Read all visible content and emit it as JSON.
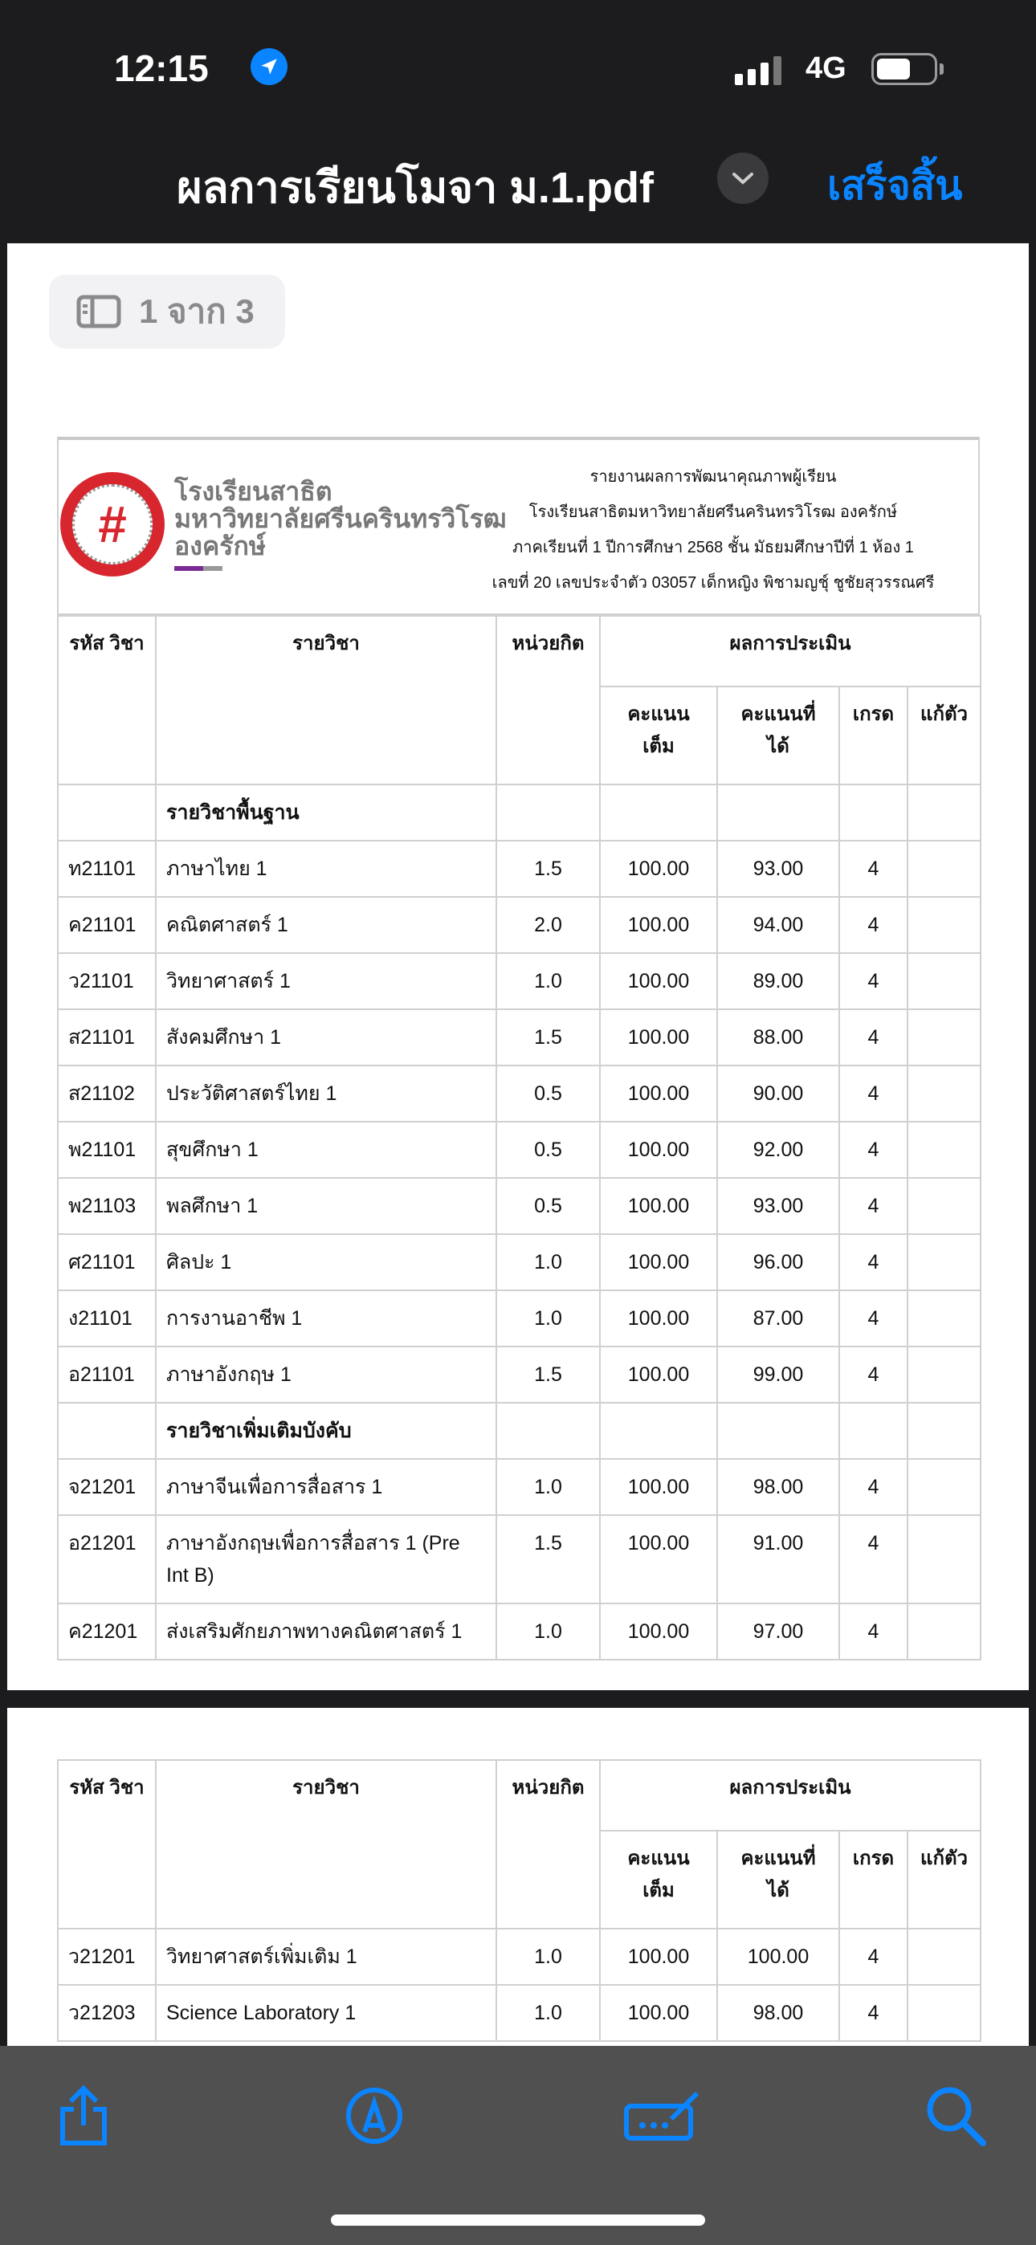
{
  "status_bar": {
    "time": "12:15",
    "network": "4G",
    "battery_percent": 60
  },
  "nav": {
    "title": "ผลการเรียนโมจา ม.1.pdf",
    "done_label": "เสร็จสิ้น"
  },
  "page_indicator": "1 จาก 3",
  "report_header": {
    "school_logo_text": [
      "โรงเรียนสาธิต",
      "มหาวิทยาลัยศรีนครินทรวิโรฒ",
      "องครักษ์"
    ],
    "lines": [
      "รายงานผลการพัฒนาคุณภาพผู้เรียน",
      "โรงเรียนสาธิตมหาวิทยาลัยศรีนครินทรวิโรฒ องครักษ์",
      "ภาคเรียนที่ 1 ปีการศึกษา 2568 ชั้น มัธยมศึกษาปีที่ 1 ห้อง 1",
      "เลขที่ 20 เลขประจำตัว 03057 เด็กหญิง พิชามญชุ์ ชูชัยสุวรรณศรี"
    ]
  },
  "table_headers": {
    "code": "รหัส วิชา",
    "subject": "รายวิชา",
    "credit": "หน่วยกิต",
    "evaluation": "ผลการประเมิน",
    "full": "คะแนน เต็ม",
    "got": "คะแนนที่ ได้",
    "grade": "เกรด",
    "fix": "แก้ตัว"
  },
  "page1_rows": [
    {
      "section": "รายวิชาพื้นฐาน"
    },
    {
      "code": "ท21101",
      "subject": "ภาษาไทย 1",
      "credit": "1.5",
      "full": "100.00",
      "got": "93.00",
      "grade": "4"
    },
    {
      "code": "ค21101",
      "subject": "คณิตศาสตร์ 1",
      "credit": "2.0",
      "full": "100.00",
      "got": "94.00",
      "grade": "4"
    },
    {
      "code": "ว21101",
      "subject": "วิทยาศาสตร์ 1",
      "credit": "1.0",
      "full": "100.00",
      "got": "89.00",
      "grade": "4"
    },
    {
      "code": "ส21101",
      "subject": "สังคมศึกษา 1",
      "credit": "1.5",
      "full": "100.00",
      "got": "88.00",
      "grade": "4"
    },
    {
      "code": "ส21102",
      "subject": "ประวัติศาสตร์ไทย 1",
      "credit": "0.5",
      "full": "100.00",
      "got": "90.00",
      "grade": "4"
    },
    {
      "code": "พ21101",
      "subject": "สุขศึกษา 1",
      "credit": "0.5",
      "full": "100.00",
      "got": "92.00",
      "grade": "4"
    },
    {
      "code": "พ21103",
      "subject": "พลศึกษา 1",
      "credit": "0.5",
      "full": "100.00",
      "got": "93.00",
      "grade": "4"
    },
    {
      "code": "ศ21101",
      "subject": "ศิลปะ 1",
      "credit": "1.0",
      "full": "100.00",
      "got": "96.00",
      "grade": "4"
    },
    {
      "code": "ง21101",
      "subject": "การงานอาชีพ 1",
      "credit": "1.0",
      "full": "100.00",
      "got": "87.00",
      "grade": "4"
    },
    {
      "code": "อ21101",
      "subject": "ภาษาอังกฤษ 1",
      "credit": "1.5",
      "full": "100.00",
      "got": "99.00",
      "grade": "4"
    },
    {
      "section": "รายวิชาเพิ่มเติมบังคับ"
    },
    {
      "code": "จ21201",
      "subject": "ภาษาจีนเพื่อการสื่อสาร 1",
      "credit": "1.0",
      "full": "100.00",
      "got": "98.00",
      "grade": "4"
    },
    {
      "code": "อ21201",
      "subject": "ภาษาอังกฤษเพื่อการสื่อสาร 1 (Pre Int B)",
      "credit": "1.5",
      "full": "100.00",
      "got": "91.00",
      "grade": "4"
    },
    {
      "code": "ค21201",
      "subject": "ส่งเสริมศักยภาพทางคณิตศาสตร์ 1",
      "credit": "1.0",
      "full": "100.00",
      "got": "97.00",
      "grade": "4"
    }
  ],
  "page2_rows": [
    {
      "code": "ว21201",
      "subject": "วิทยาศาสตร์เพิ่มเติม 1",
      "credit": "1.0",
      "full": "100.00",
      "got": "100.00",
      "grade": "4"
    },
    {
      "code": "ว21203",
      "subject": "Science Laboratory 1",
      "credit": "1.0",
      "full": "100.00",
      "got": "98.00",
      "grade": "4"
    }
  ],
  "toolbar": {
    "icons": [
      "share-icon",
      "markup-icon",
      "form-fill-icon",
      "search-icon"
    ],
    "accent": "#0a84ff"
  }
}
